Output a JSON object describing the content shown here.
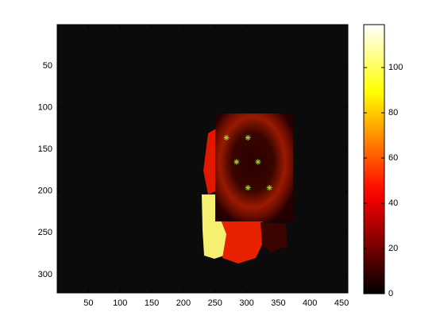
{
  "chart_data": {
    "type": "image-scatter",
    "xlim": [
      0.5,
      460
    ],
    "ylim": [
      0.5,
      322
    ],
    "y_reversed": true,
    "xticks": [
      50,
      100,
      150,
      200,
      250,
      300,
      350,
      400,
      450
    ],
    "yticks": [
      50,
      100,
      150,
      200,
      250,
      300
    ],
    "colormap": "hot",
    "colorbar": {
      "lim": [
        0,
        119
      ],
      "ticks": [
        0,
        20,
        40,
        60,
        80,
        100
      ]
    },
    "series": [
      {
        "color": "#9acd32",
        "marker": "asterisk",
        "x": [
          268,
          302,
          284,
          318,
          302,
          336
        ],
        "values": [
          136,
          136,
          165,
          165,
          196,
          196
        ]
      }
    ]
  }
}
